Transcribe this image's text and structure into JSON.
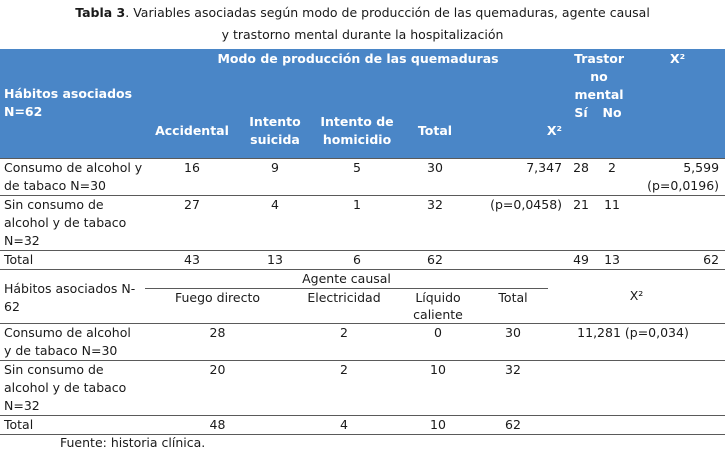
{
  "caption": {
    "bold_prefix": "Tabla 3",
    "line1": ". Variables asociadas según modo de producción de las quemaduras, agente causal",
    "line2": "y trastorno mental durante la hospitalización"
  },
  "table1": {
    "row_header": "Hábitos asociados N=62",
    "group_header": "Modo de producción de las quemaduras",
    "trastor_header": "Trastor no mental",
    "chi_header": "X²",
    "cols": [
      "Accidental",
      "Intento suicida",
      "Intento de homicidio",
      "Total",
      "X²",
      "Sí",
      "No"
    ],
    "rows": [
      {
        "label": "Consumo de alcohol y de tabaco N=30",
        "accidental": "16",
        "suicida": "9",
        "homicidio": "5",
        "total": "30",
        "x2": "7,347",
        "si": "28",
        "no": "2",
        "x2b": "5,599 (p=0,0196)"
      },
      {
        "label": "Sin consumo de alcohol y de tabaco N=32",
        "accidental": "27",
        "suicida": "4",
        "homicidio": "1",
        "total": "32",
        "x2": "(p=0,0458)",
        "si": "21",
        "no": "11",
        "x2b": ""
      },
      {
        "label": "Total",
        "accidental": "43",
        "suicida": "13",
        "homicidio": "6",
        "total": "62",
        "x2": "",
        "si": "49",
        "no": "13",
        "x2b": "62"
      }
    ]
  },
  "table2": {
    "row_header": "Hábitos asociados N-62",
    "group_header": "Agente causal",
    "cols": [
      "Fuego directo",
      "Electricidad",
      "Líquido caliente",
      "Total",
      "X²"
    ],
    "rows": [
      {
        "label": "Consumo de alcohol y de tabaco N=30",
        "fuego": "28",
        "elec": "2",
        "liquido": "0",
        "total": "30",
        "x2": "11,281 (p=0,034)"
      },
      {
        "label": "Sin consumo de alcohol y de tabaco N=32",
        "fuego": "20",
        "elec": "2",
        "liquido": "10",
        "total": "32",
        "x2": ""
      },
      {
        "label": "Total",
        "fuego": "48",
        "elec": "4",
        "liquido": "10",
        "total": "62",
        "x2": ""
      }
    ]
  },
  "footer": "Fuente: historia clínica."
}
